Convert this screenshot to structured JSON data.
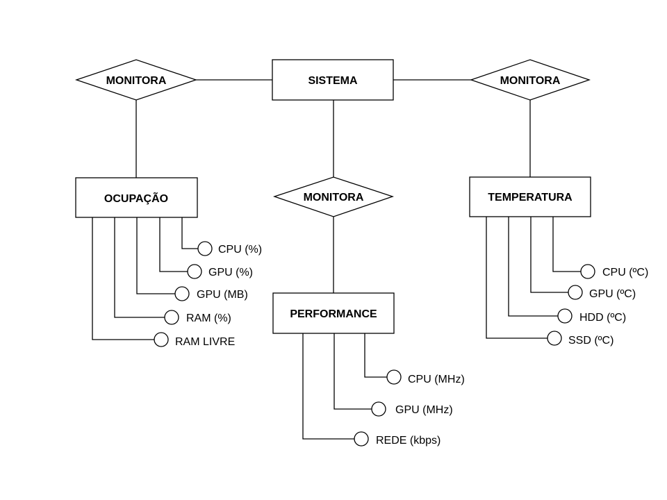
{
  "entities": {
    "sistema": "SISTEMA",
    "ocupacao": "OCUPAÇÃO",
    "performance": "PERFORMANCE",
    "temperatura": "TEMPERATURA"
  },
  "relationships": {
    "left": "MONITORA",
    "right": "MONITORA",
    "center": "MONITORA"
  },
  "attributes": {
    "ocupacao": [
      "CPU (%)",
      "GPU (%)",
      "GPU (MB)",
      "RAM (%)",
      "RAM LIVRE"
    ],
    "performance": [
      "CPU (MHz)",
      "GPU (MHz)",
      "REDE (kbps)"
    ],
    "temperatura": [
      "CPU (ºC)",
      "GPU (ºC)",
      "HDD (ºC)",
      "SSD (ºC)"
    ]
  }
}
